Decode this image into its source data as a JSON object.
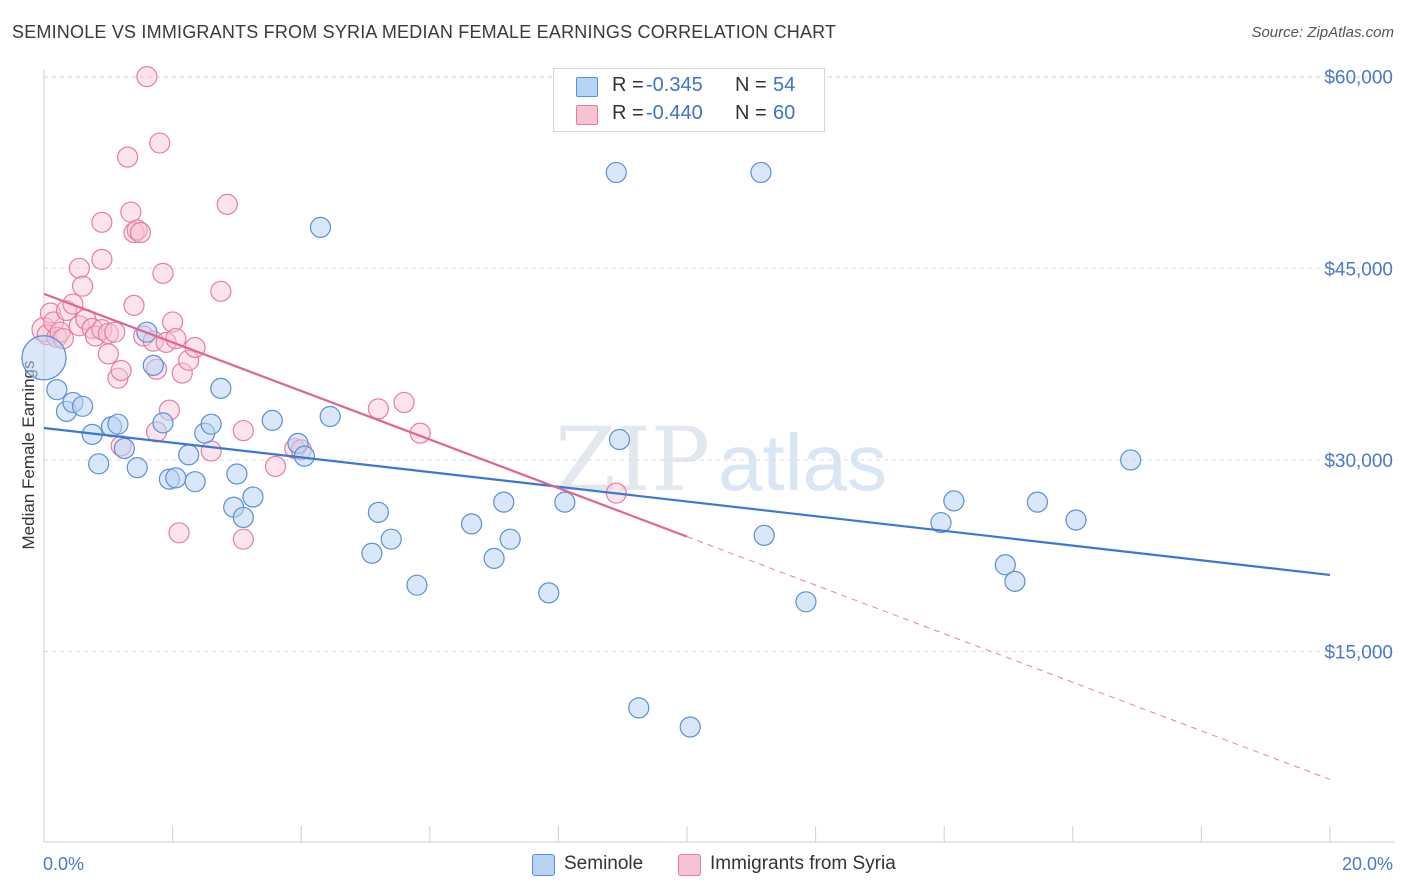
{
  "title": "SEMINOLE VS IMMIGRANTS FROM SYRIA MEDIAN FEMALE EARNINGS CORRELATION CHART",
  "source": "Source: ZipAtlas.com",
  "watermark": {
    "zip": "ZIP",
    "atlas": "atlas"
  },
  "legend_top": [
    {
      "r_label": "R =",
      "r_value": "-0.345",
      "n_label": "N =",
      "n_value": "54"
    },
    {
      "r_label": "R =",
      "r_value": "-0.440",
      "n_label": "N =",
      "n_value": "60"
    }
  ],
  "legend_bottom": [
    "Seminole",
    "Immigrants from Syria"
  ],
  "chart_data": {
    "type": "scatter",
    "title": "SEMINOLE VS IMMIGRANTS FROM SYRIA MEDIAN FEMALE EARNINGS CORRELATION CHART",
    "xlabel": "",
    "ylabel": "Median Female Earnings",
    "xlim": [
      0,
      20
    ],
    "ylim": [
      0,
      62000
    ],
    "x_ticks": [
      "0.0%",
      "20.0%"
    ],
    "y_ticks": [
      {
        "value": 15000,
        "label": "$15,000"
      },
      {
        "value": 30000,
        "label": "$30,000"
      },
      {
        "value": 45000,
        "label": "$45,000"
      },
      {
        "value": 60000,
        "label": "$60,000"
      }
    ],
    "grid": "horizontal dashed",
    "legend_position": "top-center and bottom",
    "colors": {
      "seminole": "#5b8fd6",
      "syria": "#e87ca0",
      "seminole_fill": "#b9d3f3",
      "syria_fill": "#f6c3d3"
    },
    "series": [
      {
        "name": "Seminole",
        "r": -0.345,
        "n": 54,
        "trend": {
          "x": [
            0,
            20
          ],
          "y": [
            32500,
            21000
          ],
          "solid_to": 20
        },
        "points": [
          [
            0.0,
            38000,
            22
          ],
          [
            0.2,
            35500,
            10
          ],
          [
            0.35,
            33800,
            10
          ],
          [
            0.45,
            34500,
            10
          ],
          [
            0.6,
            34200,
            10
          ],
          [
            0.75,
            32000,
            10
          ],
          [
            0.85,
            29700,
            10
          ],
          [
            1.05,
            32600,
            10
          ],
          [
            1.15,
            32800,
            10
          ],
          [
            1.25,
            30900,
            10
          ],
          [
            1.45,
            29400,
            10
          ],
          [
            1.6,
            40000,
            10
          ],
          [
            1.7,
            37400,
            10
          ],
          [
            1.85,
            32900,
            10
          ],
          [
            1.95,
            28500,
            10
          ],
          [
            2.05,
            28600,
            10
          ],
          [
            2.25,
            30400,
            10
          ],
          [
            2.35,
            28300,
            10
          ],
          [
            2.5,
            32100,
            10
          ],
          [
            2.6,
            32800,
            10
          ],
          [
            2.75,
            35600,
            10
          ],
          [
            2.95,
            26300,
            10
          ],
          [
            3.0,
            28900,
            10
          ],
          [
            3.1,
            25500,
            10
          ],
          [
            3.25,
            27100,
            10
          ],
          [
            3.55,
            33100,
            10
          ],
          [
            3.95,
            31300,
            10
          ],
          [
            4.05,
            30300,
            10
          ],
          [
            4.45,
            33400,
            10
          ],
          [
            4.3,
            48200,
            10
          ],
          [
            5.1,
            22700,
            10
          ],
          [
            5.2,
            25900,
            10
          ],
          [
            5.4,
            23800,
            10
          ],
          [
            5.8,
            20200,
            10
          ],
          [
            6.65,
            25000,
            10
          ],
          [
            7.0,
            22300,
            10
          ],
          [
            7.15,
            26700,
            10
          ],
          [
            7.25,
            23800,
            10
          ],
          [
            7.85,
            19600,
            10
          ],
          [
            8.1,
            26700,
            10
          ],
          [
            8.9,
            52500,
            10
          ],
          [
            8.95,
            31600,
            10
          ],
          [
            9.25,
            10600,
            10
          ],
          [
            10.05,
            9100,
            10
          ],
          [
            11.15,
            52500,
            10
          ],
          [
            11.2,
            24100,
            10
          ],
          [
            11.85,
            18900,
            10
          ],
          [
            13.95,
            25100,
            10
          ],
          [
            14.15,
            26800,
            10
          ],
          [
            14.95,
            21800,
            10
          ],
          [
            15.1,
            20500,
            10
          ],
          [
            15.45,
            26700,
            10
          ],
          [
            16.05,
            25300,
            10
          ],
          [
            16.9,
            30000,
            10
          ]
        ]
      },
      {
        "name": "Immigrants from Syria",
        "r": -0.44,
        "n": 60,
        "trend": {
          "x": [
            0,
            20
          ],
          "y": [
            43000,
            5000
          ],
          "solid_to": 10
        },
        "points": [
          [
            0.0,
            40200,
            12
          ],
          [
            0.05,
            39800,
            10
          ],
          [
            0.1,
            41500,
            10
          ],
          [
            0.15,
            40800,
            10
          ],
          [
            0.2,
            39600,
            10
          ],
          [
            0.25,
            40000,
            10
          ],
          [
            0.3,
            39500,
            10
          ],
          [
            0.35,
            41700,
            10
          ],
          [
            0.45,
            42200,
            10
          ],
          [
            0.55,
            40500,
            10
          ],
          [
            0.55,
            45000,
            10
          ],
          [
            0.6,
            43600,
            10
          ],
          [
            0.65,
            41000,
            10
          ],
          [
            0.75,
            40300,
            10
          ],
          [
            0.8,
            39700,
            10
          ],
          [
            0.9,
            40200,
            10
          ],
          [
            0.9,
            45700,
            10
          ],
          [
            0.9,
            48600,
            10
          ],
          [
            1.0,
            39900,
            10
          ],
          [
            1.0,
            38300,
            10
          ],
          [
            1.1,
            40000,
            10
          ],
          [
            1.15,
            36400,
            10
          ],
          [
            1.2,
            37000,
            10
          ],
          [
            1.2,
            31100,
            10
          ],
          [
            1.3,
            53700,
            10
          ],
          [
            1.35,
            49400,
            10
          ],
          [
            1.4,
            42100,
            10
          ],
          [
            1.4,
            47800,
            10
          ],
          [
            1.45,
            48000,
            10
          ],
          [
            1.5,
            47800,
            10
          ],
          [
            1.55,
            39700,
            10
          ],
          [
            1.6,
            60000,
            10
          ],
          [
            1.7,
            39300,
            10
          ],
          [
            1.75,
            32200,
            10
          ],
          [
            1.75,
            37100,
            10
          ],
          [
            1.8,
            54800,
            10
          ],
          [
            1.85,
            44600,
            10
          ],
          [
            1.9,
            39200,
            10
          ],
          [
            1.95,
            33900,
            10
          ],
          [
            2.0,
            40800,
            10
          ],
          [
            2.05,
            39500,
            10
          ],
          [
            2.1,
            24300,
            10
          ],
          [
            2.15,
            36800,
            10
          ],
          [
            2.25,
            37800,
            10
          ],
          [
            2.35,
            38800,
            10
          ],
          [
            2.6,
            30700,
            10
          ],
          [
            2.75,
            43200,
            10
          ],
          [
            2.85,
            50000,
            10
          ],
          [
            3.1,
            32300,
            10
          ],
          [
            3.1,
            23800,
            10
          ],
          [
            3.6,
            29500,
            10
          ],
          [
            3.9,
            30900,
            10
          ],
          [
            4.0,
            30800,
            10
          ],
          [
            5.2,
            34000,
            10
          ],
          [
            5.6,
            34500,
            10
          ],
          [
            5.85,
            32100,
            10
          ],
          [
            8.9,
            27400,
            10
          ]
        ]
      }
    ]
  }
}
